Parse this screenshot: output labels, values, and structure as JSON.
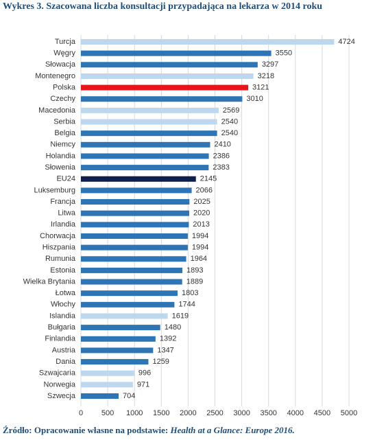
{
  "chart_data": {
    "type": "bar",
    "orientation": "horizontal",
    "title": "Wykres 3. Szacowana liczba konsultacji przypadająca na lekarza w 2014 roku",
    "categories": [
      "Turcja",
      "Węgry",
      "Słowacja",
      "Montenegro",
      "Polska",
      "Czechy",
      "Macedonia",
      "Serbia",
      "Belgia",
      "Niemcy",
      "Holandia",
      "Słowenia",
      "EU24",
      "Luksemburg",
      "Francja",
      "Litwa",
      "Irlandia",
      "Chorwacja",
      "Hiszpania",
      "Rumunia",
      "Estonia",
      "Wielka Brytania",
      "Łotwa",
      "Włochy",
      "Islandia",
      "Bułgaria",
      "Finlandia",
      "Austria",
      "Dania",
      "Szwajcaria",
      "Norwegia",
      "Szwecja"
    ],
    "values": [
      4724,
      3550,
      3297,
      3218,
      3121,
      3010,
      2569,
      2540,
      2540,
      2410,
      2386,
      2383,
      2145,
      2066,
      2025,
      2020,
      2013,
      1994,
      1994,
      1964,
      1893,
      1889,
      1803,
      1744,
      1619,
      1480,
      1392,
      1347,
      1259,
      996,
      971,
      704
    ],
    "colors": [
      "#bdd7ee",
      "#2e75b6",
      "#2e75b6",
      "#bdd7ee",
      "#e8141c",
      "#2e75b6",
      "#bdd7ee",
      "#bdd7ee",
      "#2e75b6",
      "#2e75b6",
      "#2e75b6",
      "#2e75b6",
      "#0d1f4a",
      "#2e75b6",
      "#2e75b6",
      "#2e75b6",
      "#2e75b6",
      "#2e75b6",
      "#2e75b6",
      "#2e75b6",
      "#2e75b6",
      "#2e75b6",
      "#2e75b6",
      "#2e75b6",
      "#bdd7ee",
      "#2e75b6",
      "#2e75b6",
      "#2e75b6",
      "#2e75b6",
      "#bdd7ee",
      "#bdd7ee",
      "#2e75b6"
    ],
    "xlim": [
      0,
      5000
    ],
    "xticks": [
      0,
      500,
      1000,
      1500,
      2000,
      2500,
      3000,
      3500,
      4000,
      4500,
      5000
    ],
    "grid": true,
    "source": "Źródło: Opracowanie własne na podstawie: ",
    "source_title": "Health at a Glance: Europe 2016."
  }
}
